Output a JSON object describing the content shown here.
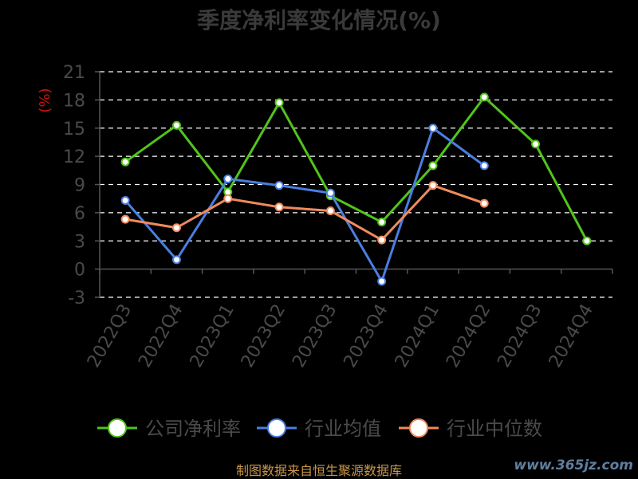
{
  "chart_data": {
    "type": "line",
    "title": "季度净利率变化情况(%)",
    "ylabel": "(%)",
    "ylim": [
      -3,
      21
    ],
    "yticks": [
      -3,
      0,
      3,
      6,
      9,
      12,
      15,
      18,
      21
    ],
    "categories": [
      "2022Q3",
      "2022Q4",
      "2023Q1",
      "2023Q2",
      "2023Q3",
      "2023Q4",
      "2024Q1",
      "2024Q2",
      "2024Q3",
      "2024Q4"
    ],
    "grid": true,
    "legend_position": "bottom",
    "series": [
      {
        "name": "公司净利率",
        "color": "#52c41a",
        "values": [
          11.4,
          15.3,
          8.2,
          17.7,
          7.8,
          5.0,
          11.0,
          18.3,
          13.3,
          3.0
        ]
      },
      {
        "name": "行业均值",
        "color": "#4a7fe0",
        "values": [
          7.3,
          1.0,
          9.6,
          8.9,
          8.1,
          -1.3,
          15.0,
          11.0,
          null,
          null
        ]
      },
      {
        "name": "行业中位数",
        "color": "#f08a5d",
        "values": [
          5.3,
          4.4,
          7.5,
          6.6,
          6.2,
          3.1,
          8.9,
          7.0,
          null,
          null
        ]
      }
    ]
  },
  "footer": {
    "source": "制图数据来自恒生聚源数据库",
    "watermark": "www.365jz.com"
  }
}
